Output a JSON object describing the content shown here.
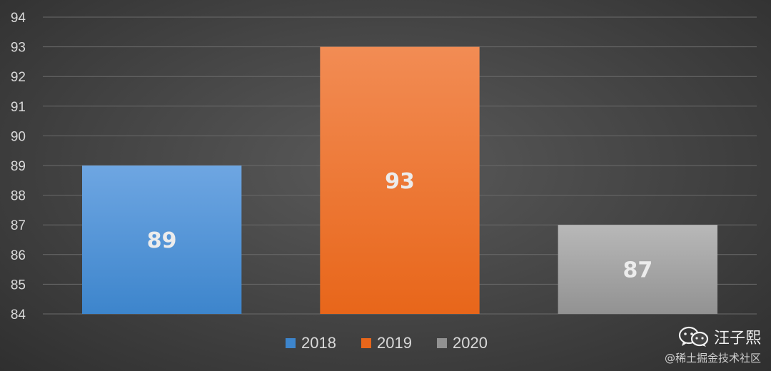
{
  "chart_data": {
    "type": "bar",
    "categories": [
      "2018",
      "2019",
      "2020"
    ],
    "values": [
      89,
      93,
      87
    ],
    "colors": {
      "2018": [
        "#6ea6e2",
        "#3d85cc"
      ],
      "2019": [
        "#f28c54",
        "#e8661a"
      ],
      "2020": [
        "#b8b8b8",
        "#929292"
      ]
    },
    "ylim": [
      84,
      94
    ],
    "yticks": [
      "84",
      "85",
      "86",
      "87",
      "88",
      "89",
      "90",
      "91",
      "92",
      "93",
      "94"
    ],
    "data_labels": [
      "89",
      "93",
      "87"
    ],
    "grid": true,
    "legend": [
      "2018",
      "2019",
      "2020"
    ],
    "legend_position": "bottom"
  },
  "watermark": {
    "icon": "wechat-icon",
    "author": "汪子熙",
    "site": "@稀土掘金技术社区"
  }
}
